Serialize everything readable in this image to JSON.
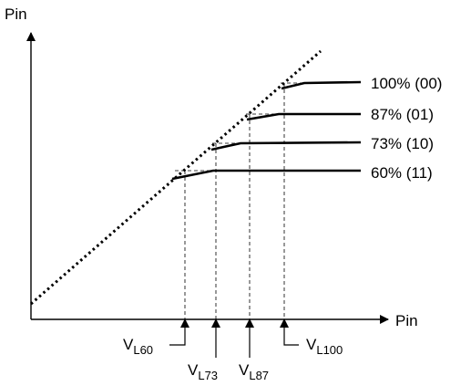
{
  "axes": {
    "y_label": "Pin",
    "x_label": "Pin"
  },
  "levels": [
    {
      "label": "100% (00)",
      "threshold_main": "V",
      "threshold_sub": "L100"
    },
    {
      "label": "87% (01)",
      "threshold_main": "V",
      "threshold_sub": "L87"
    },
    {
      "label": "73% (10)",
      "threshold_main": "V",
      "threshold_sub": "L73"
    },
    {
      "label": "60% (11)",
      "threshold_main": "V",
      "threshold_sub": "L60"
    }
  ],
  "colors": {
    "stroke": "#000000",
    "background": "#ffffff"
  }
}
